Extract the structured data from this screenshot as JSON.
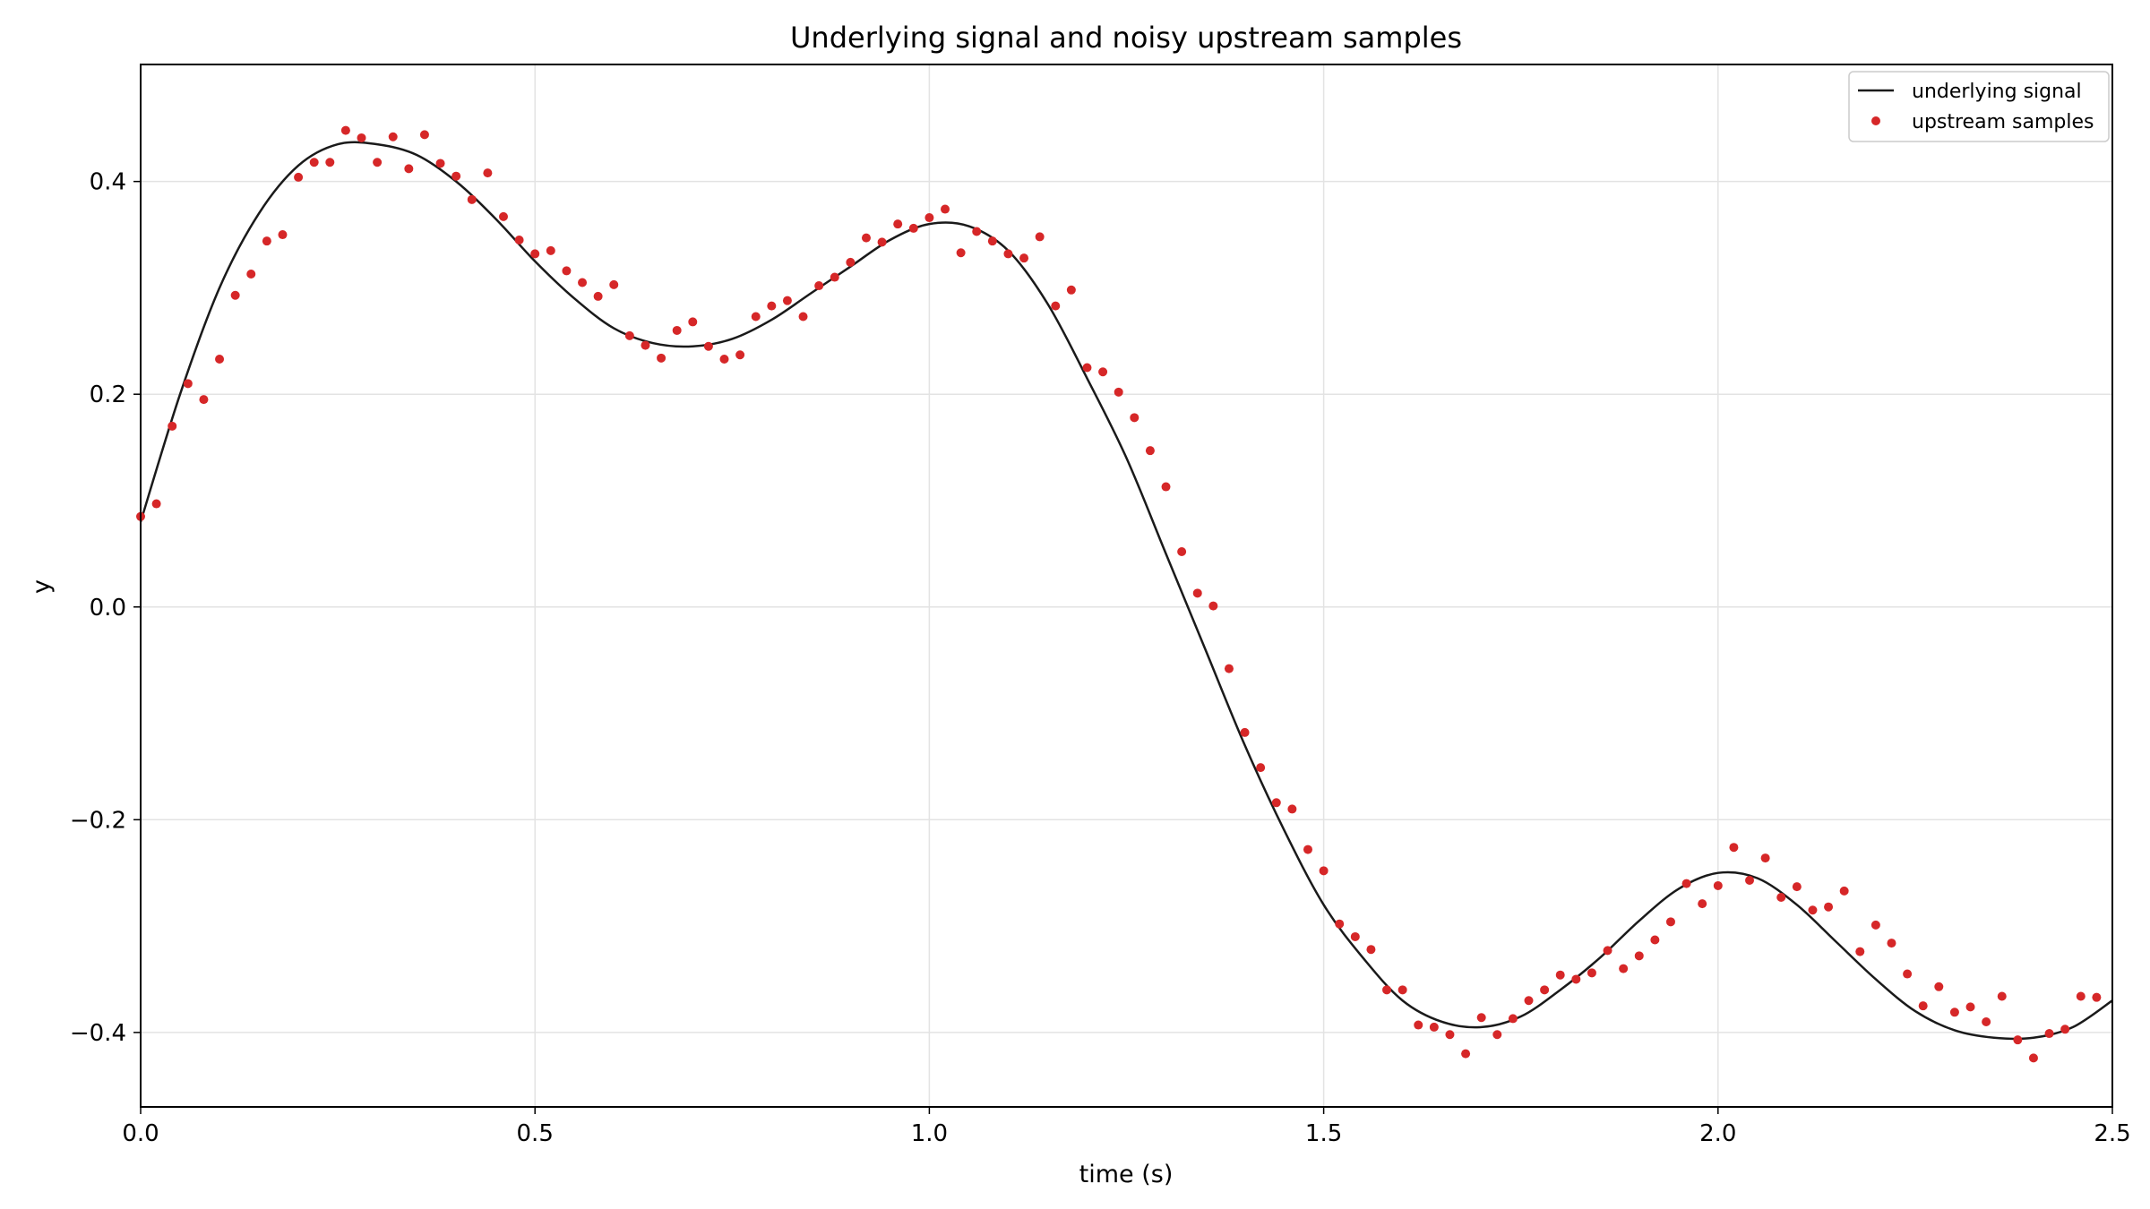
{
  "chart_data": {
    "type": "line",
    "title": "Underlying signal and noisy upstream samples",
    "xlabel": "time (s)",
    "ylabel": "y",
    "xlim": [
      0,
      2.5
    ],
    "ylim": [
      -0.47,
      0.51
    ],
    "xticks": [
      0,
      0.5,
      1.0,
      1.5,
      2.0,
      2.5
    ],
    "xtick_labels": [
      "0.0",
      "0.5",
      "1.0",
      "1.5",
      "2.0",
      "2.5"
    ],
    "yticks": [
      -0.4,
      -0.2,
      0.0,
      0.2,
      0.4
    ],
    "ytick_labels": [
      "−0.4",
      "−0.2",
      "0.0",
      "0.2",
      "0.4"
    ],
    "grid": true,
    "legend_position": "top-right",
    "series": [
      {
        "name": "underlying signal",
        "kind": "line",
        "color": "#1a1a1a",
        "x": [
          0.0,
          0.05,
          0.1,
          0.15,
          0.2,
          0.25,
          0.3,
          0.35,
          0.4,
          0.45,
          0.5,
          0.55,
          0.6,
          0.65,
          0.7,
          0.75,
          0.8,
          0.85,
          0.9,
          0.95,
          1.0,
          1.05,
          1.1,
          1.15,
          1.2,
          1.25,
          1.3,
          1.35,
          1.4,
          1.45,
          1.5,
          1.55,
          1.6,
          1.65,
          1.7,
          1.75,
          1.8,
          1.85,
          1.9,
          1.95,
          2.0,
          2.05,
          2.1,
          2.15,
          2.2,
          2.25,
          2.3,
          2.35,
          2.4,
          2.45,
          2.5
        ],
        "y": [
          0.08,
          0.2,
          0.3,
          0.37,
          0.415,
          0.435,
          0.435,
          0.425,
          0.4,
          0.365,
          0.325,
          0.29,
          0.262,
          0.248,
          0.245,
          0.252,
          0.27,
          0.295,
          0.32,
          0.345,
          0.36,
          0.358,
          0.335,
          0.285,
          0.215,
          0.14,
          0.05,
          -0.04,
          -0.13,
          -0.21,
          -0.28,
          -0.33,
          -0.37,
          -0.39,
          -0.395,
          -0.385,
          -0.36,
          -0.33,
          -0.295,
          -0.265,
          -0.25,
          -0.255,
          -0.28,
          -0.315,
          -0.35,
          -0.38,
          -0.398,
          -0.405,
          -0.405,
          -0.395,
          -0.37
        ]
      },
      {
        "name": "upstream samples",
        "kind": "scatter",
        "color": "#d62728",
        "x": [
          0.0,
          0.02,
          0.04,
          0.06,
          0.08,
          0.1,
          0.12,
          0.14,
          0.16,
          0.18,
          0.2,
          0.22,
          0.24,
          0.26,
          0.28,
          0.3,
          0.32,
          0.34,
          0.36,
          0.38,
          0.4,
          0.42,
          0.44,
          0.46,
          0.48,
          0.5,
          0.52,
          0.54,
          0.56,
          0.58,
          0.6,
          0.62,
          0.64,
          0.66,
          0.68,
          0.7,
          0.72,
          0.74,
          0.76,
          0.78,
          0.8,
          0.82,
          0.84,
          0.86,
          0.88,
          0.9,
          0.92,
          0.94,
          0.96,
          0.98,
          1.0,
          1.02,
          1.04,
          1.06,
          1.08,
          1.1,
          1.12,
          1.14,
          1.16,
          1.18,
          1.2,
          1.22,
          1.24,
          1.26,
          1.28,
          1.3,
          1.32,
          1.34,
          1.36,
          1.38,
          1.4,
          1.42,
          1.44,
          1.46,
          1.48,
          1.5,
          1.52,
          1.54,
          1.56,
          1.58,
          1.6,
          1.62,
          1.64,
          1.66,
          1.68,
          1.7,
          1.72,
          1.74,
          1.76,
          1.78,
          1.8,
          1.82,
          1.84,
          1.86,
          1.88,
          1.9,
          1.92,
          1.94,
          1.96,
          1.98,
          2.0,
          2.02,
          2.04,
          2.06,
          2.08,
          2.1,
          2.12,
          2.14,
          2.16,
          2.18,
          2.2,
          2.22,
          2.24,
          2.26,
          2.28,
          2.3,
          2.32,
          2.34,
          2.36,
          2.38,
          2.4,
          2.42,
          2.44,
          2.46,
          2.48
        ],
        "y": [
          0.085,
          0.097,
          0.17,
          0.21,
          0.195,
          0.233,
          0.293,
          0.313,
          0.344,
          0.35,
          0.404,
          0.418,
          0.418,
          0.448,
          0.441,
          0.418,
          0.442,
          0.412,
          0.444,
          0.417,
          0.405,
          0.383,
          0.408,
          0.367,
          0.345,
          0.332,
          0.335,
          0.316,
          0.305,
          0.292,
          0.303,
          0.255,
          0.246,
          0.234,
          0.26,
          0.268,
          0.245,
          0.233,
          0.237,
          0.273,
          0.283,
          0.288,
          0.273,
          0.302,
          0.31,
          0.324,
          0.347,
          0.343,
          0.36,
          0.356,
          0.366,
          0.374,
          0.333,
          0.353,
          0.344,
          0.332,
          0.328,
          0.348,
          0.283,
          0.298,
          0.225,
          0.221,
          0.202,
          0.178,
          0.147,
          0.113,
          0.052,
          0.013,
          0.001,
          -0.058,
          -0.118,
          -0.151,
          -0.184,
          -0.19,
          -0.228,
          -0.248,
          -0.298,
          -0.31,
          -0.322,
          -0.36,
          -0.36,
          -0.393,
          -0.395,
          -0.402,
          -0.42,
          -0.386,
          -0.402,
          -0.387,
          -0.37,
          -0.36,
          -0.346,
          -0.35,
          -0.344,
          -0.323,
          -0.34,
          -0.328,
          -0.313,
          -0.296,
          -0.26,
          -0.279,
          -0.262,
          -0.226,
          -0.257,
          -0.236,
          -0.273,
          -0.263,
          -0.285,
          -0.282,
          -0.267,
          -0.324,
          -0.299,
          -0.316,
          -0.345,
          -0.375,
          -0.357,
          -0.381,
          -0.376,
          -0.39,
          -0.366,
          -0.407,
          -0.424,
          -0.401,
          -0.397,
          -0.366,
          -0.367
        ]
      }
    ]
  }
}
